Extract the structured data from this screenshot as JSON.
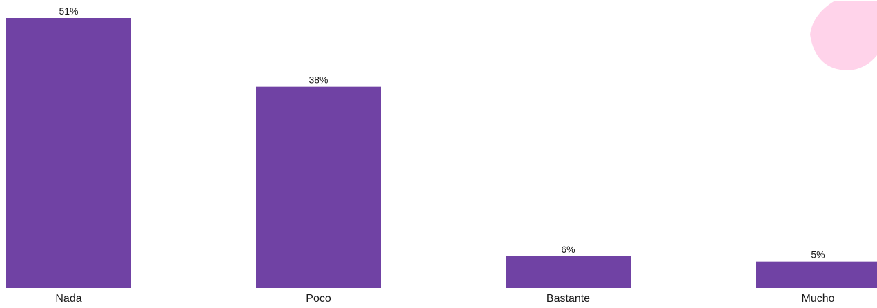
{
  "chart_data": {
    "type": "bar",
    "categories": [
      "Nada",
      "Poco",
      "Bastante",
      "Mucho"
    ],
    "values": [
      51,
      38,
      6,
      5
    ],
    "value_labels": [
      "51%",
      "38%",
      "6%",
      "5%"
    ],
    "unit": "%",
    "title": "",
    "xlabel": "",
    "ylabel": "",
    "ylim": [
      0,
      51
    ],
    "grid": false,
    "legend": "none",
    "colors": {
      "bar": "#7042A4",
      "decoration": "#FFD3EA",
      "text": "#1a1a1a"
    }
  }
}
